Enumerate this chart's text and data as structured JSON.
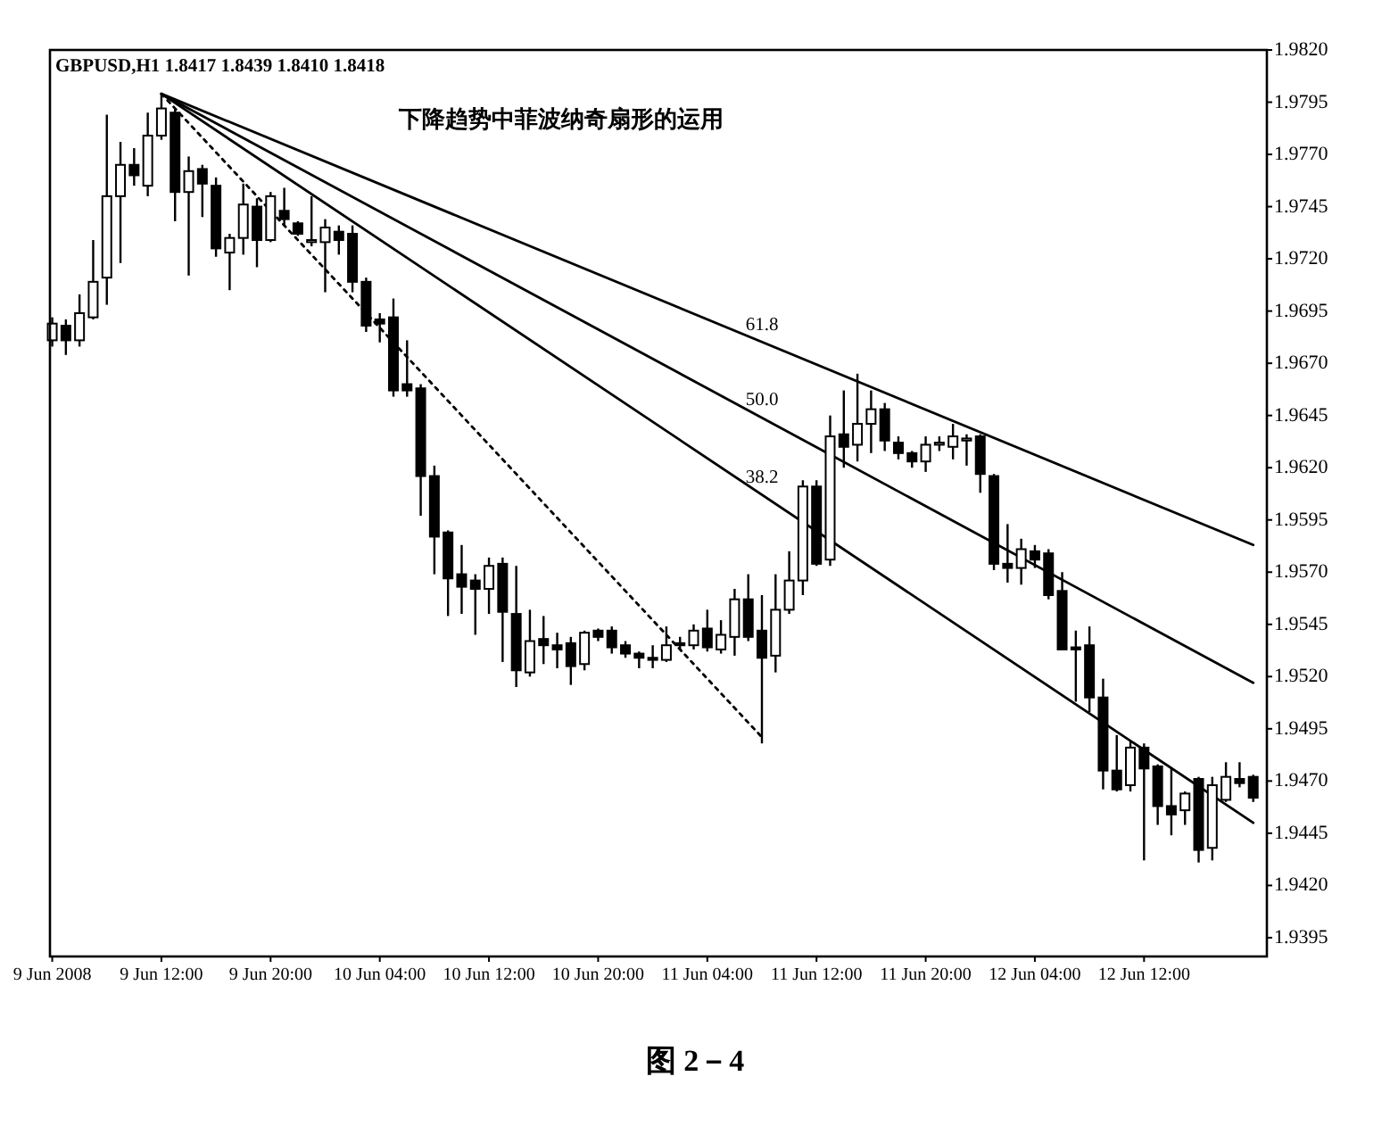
{
  "chart_data": {
    "type": "candlestick",
    "title": "下降趋势中菲波纳奇扇形的运用",
    "subtitle": "GBPUSD,H1 1.8417 1.8439 1.8410 1.8418",
    "annotations": [
      {
        "text": "61.8",
        "x": "2008-06-11T08:00",
        "y": 1.968
      },
      {
        "text": "50.0",
        "x": "2008-06-11T08:00",
        "y": 1.9644
      },
      {
        "text": "38.2",
        "x": "2008-06-11T08:00",
        "y": 1.9607
      },
      "图 2－4"
    ],
    "color": "#000000",
    "x": [
      "2008-06-09T04:00",
      "2008-06-09T05:00",
      "2008-06-09T06:00",
      "2008-06-09T07:00",
      "2008-06-09T08:00",
      "2008-06-09T09:00",
      "2008-06-09T10:00",
      "2008-06-09T11:00",
      "2008-06-09T12:00",
      "2008-06-09T13:00",
      "2008-06-09T14:00",
      "2008-06-09T15:00",
      "2008-06-09T16:00",
      "2008-06-09T17:00",
      "2008-06-09T18:00",
      "2008-06-09T19:00",
      "2008-06-09T20:00",
      "2008-06-09T21:00",
      "2008-06-09T22:00",
      "2008-06-09T23:00",
      "2008-06-10T00:00",
      "2008-06-10T01:00",
      "2008-06-10T02:00",
      "2008-06-10T03:00",
      "2008-06-10T04:00",
      "2008-06-10T05:00",
      "2008-06-10T06:00",
      "2008-06-10T07:00",
      "2008-06-10T08:00",
      "2008-06-10T09:00",
      "2008-06-10T10:00",
      "2008-06-10T11:00",
      "2008-06-10T12:00",
      "2008-06-10T13:00",
      "2008-06-10T14:00",
      "2008-06-10T15:00",
      "2008-06-10T16:00",
      "2008-06-10T17:00",
      "2008-06-10T18:00",
      "2008-06-10T19:00",
      "2008-06-10T20:00",
      "2008-06-10T21:00",
      "2008-06-10T22:00",
      "2008-06-10T23:00",
      "2008-06-11T00:00",
      "2008-06-11T01:00",
      "2008-06-11T02:00",
      "2008-06-11T03:00",
      "2008-06-11T04:00",
      "2008-06-11T05:00",
      "2008-06-11T06:00",
      "2008-06-11T07:00",
      "2008-06-11T08:00",
      "2008-06-11T09:00",
      "2008-06-11T10:00",
      "2008-06-11T11:00",
      "2008-06-11T12:00",
      "2008-06-11T13:00",
      "2008-06-11T14:00",
      "2008-06-11T15:00",
      "2008-06-11T16:00",
      "2008-06-11T17:00",
      "2008-06-11T18:00",
      "2008-06-11T19:00",
      "2008-06-11T20:00",
      "2008-06-11T21:00",
      "2008-06-11T22:00",
      "2008-06-11T23:00",
      "2008-06-12T00:00",
      "2008-06-12T01:00",
      "2008-06-12T02:00",
      "2008-06-12T03:00",
      "2008-06-12T04:00",
      "2008-06-12T05:00",
      "2008-06-12T06:00",
      "2008-06-12T07:00",
      "2008-06-12T08:00",
      "2008-06-12T09:00",
      "2008-06-12T10:00",
      "2008-06-12T11:00",
      "2008-06-12T12:00",
      "2008-06-12T13:00",
      "2008-06-12T14:00",
      "2008-06-12T15:00",
      "2008-06-12T16:00",
      "2008-06-12T17:00",
      "2008-06-12T18:00",
      "2008-06-12T19:00",
      "2008-06-12T20:00"
    ],
    "ohlc": [
      [
        1.9681,
        1.9692,
        1.9678,
        1.9689
      ],
      [
        1.9688,
        1.9691,
        1.9674,
        1.9681
      ],
      [
        1.9681,
        1.9703,
        1.9678,
        1.9694
      ],
      [
        1.9692,
        1.9729,
        1.9691,
        1.9709
      ],
      [
        1.9711,
        1.9789,
        1.9698,
        1.975
      ],
      [
        1.975,
        1.9776,
        1.9718,
        1.9765
      ],
      [
        1.9765,
        1.9773,
        1.9755,
        1.976
      ],
      [
        1.9755,
        1.979,
        1.975,
        1.9779
      ],
      [
        1.9779,
        1.9799,
        1.9777,
        1.9792
      ],
      [
        1.979,
        1.9792,
        1.9738,
        1.9752
      ],
      [
        1.9752,
        1.9769,
        1.9712,
        1.9762
      ],
      [
        1.9763,
        1.9765,
        1.974,
        1.9756
      ],
      [
        1.9755,
        1.9759,
        1.9721,
        1.9725
      ],
      [
        1.9723,
        1.9732,
        1.9705,
        1.973
      ],
      [
        1.973,
        1.9756,
        1.9722,
        1.9746
      ],
      [
        1.9745,
        1.9749,
        1.9716,
        1.9729
      ],
      [
        1.9729,
        1.9752,
        1.9728,
        1.975
      ],
      [
        1.9743,
        1.9754,
        1.9736,
        1.9739
      ],
      [
        1.9737,
        1.9738,
        1.9731,
        1.9732
      ],
      [
        1.9728,
        1.975,
        1.9726,
        1.9729
      ],
      [
        1.9728,
        1.9739,
        1.9704,
        1.9735
      ],
      [
        1.9733,
        1.9736,
        1.9722,
        1.9729
      ],
      [
        1.9732,
        1.9736,
        1.9704,
        1.9709
      ],
      [
        1.9709,
        1.9711,
        1.9685,
        1.9688
      ],
      [
        1.9691,
        1.9694,
        1.968,
        1.9689
      ],
      [
        1.9692,
        1.9701,
        1.9654,
        1.9657
      ],
      [
        1.966,
        1.9681,
        1.9654,
        1.9657
      ],
      [
        1.9658,
        1.966,
        1.9597,
        1.9616
      ],
      [
        1.9616,
        1.9621,
        1.9569,
        1.9587
      ],
      [
        1.9589,
        1.959,
        1.9549,
        1.9567
      ],
      [
        1.9569,
        1.9583,
        1.955,
        1.9563
      ],
      [
        1.9566,
        1.9569,
        1.954,
        1.9562
      ],
      [
        1.9562,
        1.9577,
        1.955,
        1.9573
      ],
      [
        1.9574,
        1.9577,
        1.9527,
        1.9551
      ],
      [
        1.955,
        1.9573,
        1.9515,
        1.9523
      ],
      [
        1.9522,
        1.9552,
        1.952,
        1.9537
      ],
      [
        1.9538,
        1.9549,
        1.9526,
        1.9535
      ],
      [
        1.9535,
        1.9541,
        1.9524,
        1.9533
      ],
      [
        1.9536,
        1.9539,
        1.9516,
        1.9525
      ],
      [
        1.9526,
        1.9542,
        1.9523,
        1.9541
      ],
      [
        1.9542,
        1.9543,
        1.9537,
        1.9539
      ],
      [
        1.9542,
        1.9544,
        1.9531,
        1.9534
      ],
      [
        1.9535,
        1.9537,
        1.9529,
        1.9531
      ],
      [
        1.9531,
        1.9532,
        1.9524,
        1.9529
      ],
      [
        1.9529,
        1.9535,
        1.9524,
        1.9528
      ],
      [
        1.9528,
        1.9544,
        1.9527,
        1.9535
      ],
      [
        1.9536,
        1.9539,
        1.9533,
        1.9535
      ],
      [
        1.9535,
        1.9545,
        1.9533,
        1.9542
      ],
      [
        1.9543,
        1.9552,
        1.9532,
        1.9534
      ],
      [
        1.9533,
        1.9547,
        1.9531,
        1.954
      ],
      [
        1.9539,
        1.9562,
        1.953,
        1.9557
      ],
      [
        1.9557,
        1.9569,
        1.9537,
        1.9539
      ],
      [
        1.9542,
        1.9559,
        1.9488,
        1.9529
      ],
      [
        1.953,
        1.9569,
        1.9522,
        1.9552
      ],
      [
        1.9552,
        1.958,
        1.955,
        1.9566
      ],
      [
        1.9566,
        1.9614,
        1.9559,
        1.9611
      ],
      [
        1.9611,
        1.9614,
        1.9573,
        1.9574
      ],
      [
        1.9576,
        1.9645,
        1.9573,
        1.9635
      ],
      [
        1.9636,
        1.9657,
        1.962,
        1.963
      ],
      [
        1.9631,
        1.9665,
        1.9623,
        1.9641
      ],
      [
        1.9641,
        1.9657,
        1.9627,
        1.9648
      ],
      [
        1.9648,
        1.9651,
        1.9628,
        1.9633
      ],
      [
        1.9632,
        1.9635,
        1.9624,
        1.9627
      ],
      [
        1.9627,
        1.9628,
        1.962,
        1.9623
      ],
      [
        1.9623,
        1.9635,
        1.9618,
        1.9631
      ],
      [
        1.9631,
        1.9635,
        1.9628,
        1.9632
      ],
      [
        1.963,
        1.9641,
        1.9624,
        1.9635
      ],
      [
        1.9633,
        1.9636,
        1.9621,
        1.9634
      ],
      [
        1.9635,
        1.9636,
        1.9608,
        1.9617
      ],
      [
        1.9616,
        1.9617,
        1.9571,
        1.9574
      ],
      [
        1.9574,
        1.9593,
        1.9565,
        1.9572
      ],
      [
        1.9572,
        1.9586,
        1.9564,
        1.9581
      ],
      [
        1.958,
        1.9583,
        1.9572,
        1.9576
      ],
      [
        1.9579,
        1.9581,
        1.9557,
        1.9559
      ],
      [
        1.9561,
        1.957,
        1.9533,
        1.9533
      ],
      [
        1.9534,
        1.9542,
        1.9508,
        1.9533
      ],
      [
        1.9535,
        1.9544,
        1.9503,
        1.951
      ],
      [
        1.951,
        1.9519,
        1.9466,
        1.9475
      ],
      [
        1.9475,
        1.9492,
        1.9465,
        1.9466
      ],
      [
        1.9468,
        1.9489,
        1.9465,
        1.9486
      ],
      [
        1.9486,
        1.9488,
        1.9432,
        1.9476
      ],
      [
        1.9477,
        1.9478,
        1.9449,
        1.9458
      ],
      [
        1.9458,
        1.9476,
        1.9444,
        1.9454
      ],
      [
        1.9456,
        1.9465,
        1.9449,
        1.9464
      ],
      [
        1.9471,
        1.9472,
        1.9431,
        1.9437
      ],
      [
        1.9438,
        1.9472,
        1.9432,
        1.9468
      ],
      [
        1.9461,
        1.9479,
        1.946,
        1.9472
      ],
      [
        1.9471,
        1.9479,
        1.9467,
        1.9469
      ],
      [
        1.9472,
        1.9473,
        1.946,
        1.9462
      ]
    ],
    "series": [
      {
        "type": "line",
        "color": "#000000",
        "x": [
          "2008-06-09T12:00",
          "2008-06-12T20:00"
        ],
        "values": [
          1.9799,
          1.9583
        ]
      },
      {
        "type": "line",
        "color": "#000000",
        "x": [
          "2008-06-09T12:00",
          "2008-06-12T20:00"
        ],
        "values": [
          1.9799,
          1.9517
        ]
      },
      {
        "type": "line",
        "color": "#000000",
        "x": [
          "2008-06-09T12:00",
          "2008-06-12T20:00"
        ],
        "values": [
          1.9799,
          1.945
        ]
      },
      {
        "type": "line",
        "color": "#000000",
        "line_style": "dotted",
        "x": [
          "2008-06-09T12:00",
          "2008-06-11T08:00"
        ],
        "values": [
          1.9799,
          1.9491
        ]
      }
    ],
    "xlim": [
      "2008-06-09T03:50",
      "2008-06-12T21:00"
    ],
    "xticks": [
      {
        "value": "2008-06-09T04:00",
        "label": "9 Jun 2008"
      },
      {
        "value": "2008-06-09T12:00",
        "label": "9 Jun 12:00"
      },
      {
        "value": "2008-06-09T20:00",
        "label": "9 Jun 20:00"
      },
      {
        "value": "2008-06-10T04:00",
        "label": "10 Jun 04:00"
      },
      {
        "value": "2008-06-10T12:00",
        "label": "10 Jun 12:00"
      },
      {
        "value": "2008-06-10T20:00",
        "label": "10 Jun 20:00"
      },
      {
        "value": "2008-06-11T04:00",
        "label": "11 Jun 04:00"
      },
      {
        "value": "2008-06-11T12:00",
        "label": "11 Jun 12:00"
      },
      {
        "value": "2008-06-11T20:00",
        "label": "11 Jun 20:00"
      },
      {
        "value": "2008-06-12T04:00",
        "label": "12 Jun 04:00"
      },
      {
        "value": "2008-06-12T12:00",
        "label": "12 Jun 12:00"
      }
    ],
    "ylim": [
      1.9386,
      1.982
    ],
    "yticks": [
      {
        "value": 1.982,
        "label": "1.9820"
      },
      1.9795,
      {
        "value": 1.977,
        "label": "1.9770"
      },
      1.9745,
      {
        "value": 1.972,
        "label": "1.9720"
      },
      1.9695,
      {
        "value": 1.967,
        "label": "1.9670"
      },
      1.9645,
      {
        "value": 1.962,
        "label": "1.9620"
      },
      1.9595,
      {
        "value": 1.957,
        "label": "1.9570"
      },
      1.9545,
      {
        "value": 1.952,
        "label": "1.9520"
      },
      1.9495,
      {
        "value": 1.947,
        "label": "1.9470"
      },
      1.9445,
      {
        "value": 1.942,
        "label": "1.9420"
      },
      1.9395
    ],
    "grid": false
  }
}
